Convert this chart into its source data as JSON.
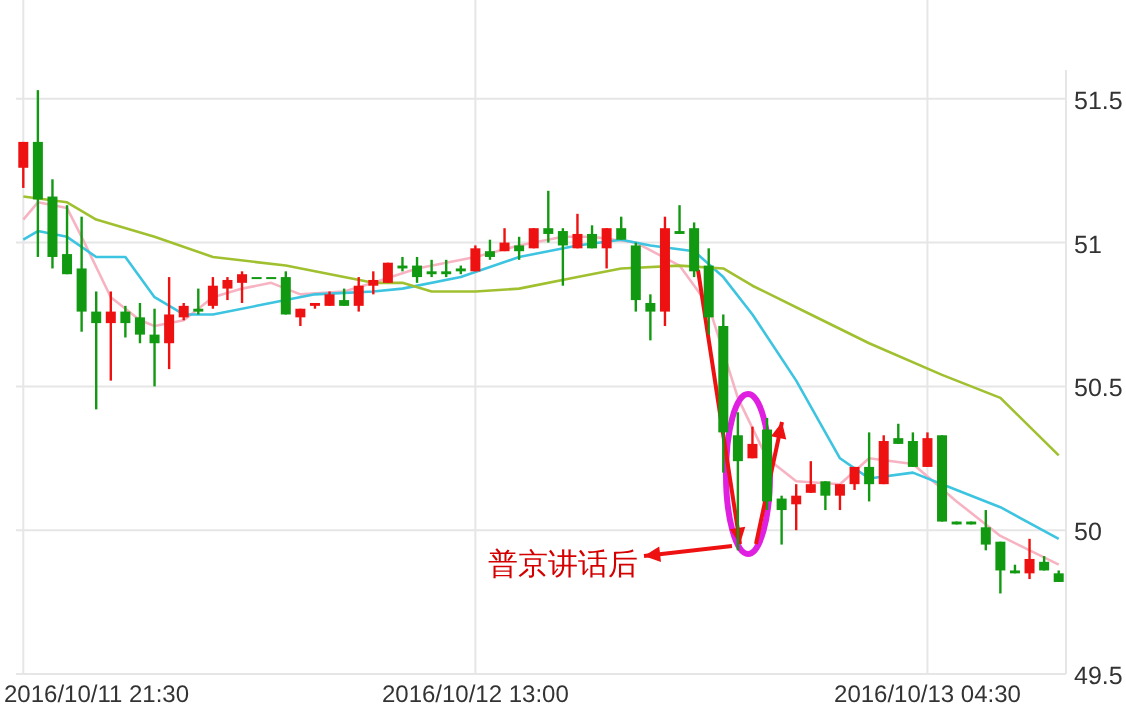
{
  "chart_data": {
    "type": "candlestick",
    "x": [
      "2016-10-11T21:30",
      "2016-10-11T22:00",
      "2016-10-11T22:30",
      "2016-10-11T23:00",
      "2016-10-11T23:30",
      "2016-10-12T00:00",
      "2016-10-12T00:30",
      "2016-10-12T01:00",
      "2016-10-12T01:30",
      "2016-10-12T02:00",
      "2016-10-12T02:30",
      "2016-10-12T03:00",
      "2016-10-12T03:30",
      "2016-10-12T04:00",
      "2016-10-12T04:30",
      "2016-10-12T05:00",
      "2016-10-12T05:30",
      "2016-10-12T06:00",
      "2016-10-12T06:30",
      "2016-10-12T07:00",
      "2016-10-12T07:30",
      "2016-10-12T08:00",
      "2016-10-12T08:30",
      "2016-10-12T09:00",
      "2016-10-12T09:30",
      "2016-10-12T10:00",
      "2016-10-12T10:30",
      "2016-10-12T11:00",
      "2016-10-12T11:30",
      "2016-10-12T12:00",
      "2016-10-12T12:30",
      "2016-10-12T13:00",
      "2016-10-12T13:30",
      "2016-10-12T14:00",
      "2016-10-12T14:30",
      "2016-10-12T15:00",
      "2016-10-12T15:30",
      "2016-10-12T16:00",
      "2016-10-12T16:30",
      "2016-10-12T17:00",
      "2016-10-12T17:30",
      "2016-10-12T18:00",
      "2016-10-12T18:30",
      "2016-10-12T19:00",
      "2016-10-12T19:30",
      "2016-10-12T20:00",
      "2016-10-12T20:30",
      "2016-10-12T21:00",
      "2016-10-12T21:30",
      "2016-10-12T22:00",
      "2016-10-12T22:30",
      "2016-10-12T23:00",
      "2016-10-12T23:30",
      "2016-10-13T00:00",
      "2016-10-13T00:30",
      "2016-10-13T01:00",
      "2016-10-13T01:30",
      "2016-10-13T02:00",
      "2016-10-13T02:30",
      "2016-10-13T03:00",
      "2016-10-13T03:30",
      "2016-10-13T04:00",
      "2016-10-13T04:30",
      "2016-10-13T05:00",
      "2016-10-13T05:30",
      "2016-10-13T06:00",
      "2016-10-13T06:30",
      "2016-10-13T07:00",
      "2016-10-13T07:30",
      "2016-10-13T08:00",
      "2016-10-13T08:30",
      "2016-10-13T09:00"
    ],
    "ohlc": [
      [
        51.26,
        51.35,
        51.19,
        51.35
      ],
      [
        51.35,
        51.53,
        50.95,
        51.15
      ],
      [
        51.16,
        51.22,
        50.91,
        50.95
      ],
      [
        50.96,
        51.13,
        50.89,
        50.89
      ],
      [
        50.91,
        51.09,
        50.69,
        50.76
      ],
      [
        50.76,
        50.83,
        50.42,
        50.72
      ],
      [
        50.72,
        50.83,
        50.52,
        50.76
      ],
      [
        50.76,
        50.78,
        50.67,
        50.72
      ],
      [
        50.74,
        50.79,
        50.65,
        50.68
      ],
      [
        50.68,
        50.77,
        50.5,
        50.65
      ],
      [
        50.65,
        50.88,
        50.56,
        50.75
      ],
      [
        50.74,
        50.79,
        50.73,
        50.78
      ],
      [
        50.77,
        50.84,
        50.75,
        50.76
      ],
      [
        50.78,
        50.88,
        50.77,
        50.85
      ],
      [
        50.84,
        50.88,
        50.8,
        50.87
      ],
      [
        50.86,
        50.9,
        50.79,
        50.89
      ],
      [
        50.88,
        50.88,
        50.88,
        50.88
      ],
      [
        50.88,
        50.88,
        50.88,
        50.88
      ],
      [
        50.88,
        50.9,
        50.75,
        50.75
      ],
      [
        50.74,
        50.77,
        50.71,
        50.77
      ],
      [
        50.78,
        50.79,
        50.77,
        50.79
      ],
      [
        50.78,
        50.83,
        50.78,
        50.82
      ],
      [
        50.8,
        50.84,
        50.78,
        50.78
      ],
      [
        50.78,
        50.88,
        50.76,
        50.85
      ],
      [
        50.85,
        50.9,
        50.82,
        50.87
      ],
      [
        50.86,
        50.93,
        50.86,
        50.93
      ],
      [
        50.92,
        50.95,
        50.9,
        50.91
      ],
      [
        50.92,
        50.95,
        50.86,
        50.88
      ],
      [
        50.9,
        50.94,
        50.88,
        50.89
      ],
      [
        50.9,
        50.94,
        50.88,
        50.89
      ],
      [
        50.91,
        50.92,
        50.89,
        50.9
      ],
      [
        50.9,
        50.99,
        50.9,
        50.98
      ],
      [
        50.97,
        51.01,
        50.94,
        50.95
      ],
      [
        50.97,
        51.05,
        50.97,
        51.0
      ],
      [
        50.99,
        51.02,
        50.94,
        50.97
      ],
      [
        50.98,
        51.05,
        50.98,
        51.05
      ],
      [
        51.05,
        51.18,
        51.0,
        51.03
      ],
      [
        51.04,
        51.05,
        50.85,
        50.99
      ],
      [
        50.98,
        51.1,
        50.98,
        51.03
      ],
      [
        51.03,
        51.06,
        50.98,
        50.98
      ],
      [
        50.98,
        51.05,
        50.91,
        51.05
      ],
      [
        51.05,
        51.09,
        51.01,
        51.01
      ],
      [
        50.99,
        51.0,
        50.76,
        50.8
      ],
      [
        50.79,
        50.82,
        50.66,
        50.76
      ],
      [
        50.76,
        51.09,
        50.71,
        51.05
      ],
      [
        51.04,
        51.13,
        51.03,
        51.03
      ],
      [
        51.05,
        51.07,
        50.88,
        50.9
      ],
      [
        50.92,
        50.98,
        50.68,
        50.74
      ],
      [
        50.71,
        50.75,
        50.2,
        50.34
      ],
      [
        50.33,
        50.41,
        49.93,
        50.24
      ],
      [
        50.25,
        50.36,
        50.25,
        50.3
      ],
      [
        50.35,
        50.39,
        50.07,
        50.1
      ],
      [
        50.11,
        50.12,
        49.95,
        50.07
      ],
      [
        50.09,
        50.16,
        50.0,
        50.12
      ],
      [
        50.13,
        50.24,
        50.13,
        50.16
      ],
      [
        50.17,
        50.17,
        50.07,
        50.12
      ],
      [
        50.12,
        50.16,
        50.07,
        50.16
      ],
      [
        50.16,
        50.22,
        50.14,
        50.22
      ],
      [
        50.22,
        50.34,
        50.1,
        50.16
      ],
      [
        50.16,
        50.33,
        50.16,
        50.31
      ],
      [
        50.32,
        50.37,
        50.3,
        50.3
      ],
      [
        50.31,
        50.34,
        50.22,
        50.22
      ],
      [
        50.22,
        50.34,
        50.22,
        50.32
      ],
      [
        50.33,
        50.33,
        50.03,
        50.03
      ],
      [
        50.03,
        50.03,
        50.02,
        50.02
      ],
      [
        50.03,
        50.03,
        50.02,
        50.02
      ],
      [
        50.01,
        50.07,
        49.93,
        49.95
      ],
      [
        49.96,
        49.96,
        49.78,
        49.86
      ],
      [
        49.86,
        49.88,
        49.85,
        49.85
      ],
      [
        49.85,
        49.97,
        49.83,
        49.9
      ],
      [
        49.89,
        49.91,
        49.86,
        49.86
      ],
      [
        49.85,
        49.86,
        49.82,
        49.82
      ]
    ],
    "colors": [
      "#ee1111",
      "#119911",
      "#119911",
      "#119911",
      "#119911",
      "#119911",
      "#ee1111",
      "#119911",
      "#119911",
      "#119911",
      "#ee1111",
      "#ee1111",
      "#119911",
      "#ee1111",
      "#ee1111",
      "#ee1111",
      "#119911",
      "#119911",
      "#119911",
      "#ee1111",
      "#ee1111",
      "#ee1111",
      "#119911",
      "#ee1111",
      "#ee1111",
      "#ee1111",
      "#119911",
      "#119911",
      "#119911",
      "#119911",
      "#119911",
      "#ee1111",
      "#119911",
      "#ee1111",
      "#119911",
      "#ee1111",
      "#119911",
      "#119911",
      "#ee1111",
      "#119911",
      "#ee1111",
      "#119911",
      "#119911",
      "#119911",
      "#ee1111",
      "#119911",
      "#119911",
      "#119911",
      "#119911",
      "#119911",
      "#ee1111",
      "#119911",
      "#119911",
      "#ee1111",
      "#ee1111",
      "#119911",
      "#ee1111",
      "#ee1111",
      "#119911",
      "#ee1111",
      "#119911",
      "#119911",
      "#ee1111",
      "#119911",
      "#119911",
      "#119911",
      "#119911",
      "#119911",
      "#119911",
      "#ee1111",
      "#119911",
      "#119911"
    ],
    "series": [
      {
        "type": "line",
        "color": "#f7b3c2",
        "x": [
          "2016-10-11T21:30",
          "2016-10-11T22:00",
          "2016-10-11T23:00",
          "2016-10-11T23:30",
          "2016-10-12T00:30",
          "2016-10-12T01:30",
          "2016-10-12T02:00",
          "2016-10-12T03:00",
          "2016-10-12T04:00",
          "2016-10-12T05:00",
          "2016-10-12T06:00",
          "2016-10-12T07:00",
          "2016-10-12T08:30",
          "2016-10-12T09:30",
          "2016-10-12T11:00",
          "2016-10-12T13:00",
          "2016-10-12T14:30",
          "2016-10-12T16:00",
          "2016-10-12T17:00",
          "2016-10-12T18:30",
          "2016-10-12T20:00",
          "2016-10-12T21:00",
          "2016-10-12T22:00",
          "2016-10-12T23:00",
          "2016-10-13T00:00",
          "2016-10-13T01:30",
          "2016-10-13T02:30",
          "2016-10-13T04:00",
          "2016-10-13T05:30",
          "2016-10-13T07:00",
          "2016-10-13T09:00"
        ],
        "values": [
          51.08,
          51.14,
          51.12,
          51.02,
          50.81,
          50.73,
          50.71,
          50.73,
          50.81,
          50.84,
          50.86,
          50.82,
          50.83,
          50.86,
          50.91,
          50.95,
          50.99,
          51.02,
          51.02,
          51.0,
          50.92,
          50.78,
          50.46,
          50.25,
          50.17,
          50.16,
          50.25,
          50.23,
          50.1,
          49.98,
          49.88
        ]
      },
      {
        "type": "line",
        "color": "#3cc4e0",
        "x": [
          "2016-10-11T21:30",
          "2016-10-11T22:00",
          "2016-10-11T23:00",
          "2016-10-12T00:00",
          "2016-10-12T01:00",
          "2016-10-12T02:00",
          "2016-10-12T03:00",
          "2016-10-12T04:00",
          "2016-10-12T05:30",
          "2016-10-12T07:30",
          "2016-10-12T09:30",
          "2016-10-12T10:30",
          "2016-10-12T12:30",
          "2016-10-12T14:30",
          "2016-10-12T16:30",
          "2016-10-12T18:00",
          "2016-10-12T19:00",
          "2016-10-12T20:30",
          "2016-10-12T21:30",
          "2016-10-12T22:30",
          "2016-10-13T00:00",
          "2016-10-13T01:30",
          "2016-10-13T02:30",
          "2016-10-13T04:00",
          "2016-10-13T05:30",
          "2016-10-13T07:00",
          "2016-10-13T09:00"
        ],
        "values": [
          51.01,
          51.04,
          51.02,
          50.95,
          50.95,
          50.81,
          50.75,
          50.75,
          50.78,
          50.82,
          50.83,
          50.84,
          50.88,
          50.95,
          50.99,
          51.01,
          50.99,
          50.97,
          50.88,
          50.75,
          50.52,
          50.25,
          50.18,
          50.2,
          50.14,
          50.08,
          49.97
        ]
      },
      {
        "type": "line",
        "color": "#a0c030",
        "x": [
          "2016-10-11T21:30",
          "2016-10-11T23:00",
          "2016-10-12T00:00",
          "2016-10-12T02:00",
          "2016-10-12T04:00",
          "2016-10-12T06:30",
          "2016-10-12T08:30",
          "2016-10-12T09:30",
          "2016-10-12T10:30",
          "2016-10-12T11:30",
          "2016-10-12T13:00",
          "2016-10-12T14:30",
          "2016-10-12T16:30",
          "2016-10-12T18:00",
          "2016-10-12T20:00",
          "2016-10-12T21:30",
          "2016-10-12T22:30",
          "2016-10-13T00:30",
          "2016-10-13T02:30",
          "2016-10-13T05:00",
          "2016-10-13T07:00",
          "2016-10-13T09:00"
        ],
        "values": [
          51.16,
          51.14,
          51.08,
          51.02,
          50.95,
          50.92,
          50.88,
          50.86,
          50.86,
          50.83,
          50.83,
          50.84,
          50.88,
          50.91,
          50.92,
          50.91,
          50.85,
          50.75,
          50.65,
          50.54,
          50.46,
          50.26
        ]
      }
    ],
    "xlim": [
      "2016-10-11T21:15",
      "2016-10-13T09:15"
    ],
    "xticks": [
      {
        "value": "2016-10-11T21:30",
        "label": "2016/10/11 21:30"
      },
      {
        "value": "2016-10-12T13:00",
        "label": "2016/10/12 13:00"
      },
      {
        "value": "2016-10-13T04:30",
        "label": "2016/10/13 04:30"
      }
    ],
    "ylim": [
      49.5,
      51.6
    ],
    "yticks": [
      49.5,
      50,
      50.5,
      51,
      51.5
    ],
    "grid": true,
    "annotations": [
      "普京讲话后"
    ]
  }
}
